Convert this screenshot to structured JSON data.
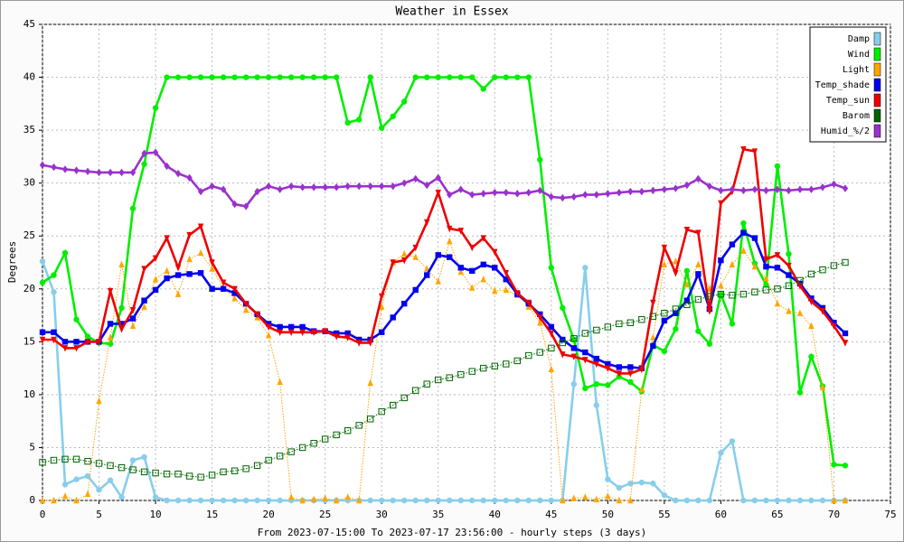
{
  "chart_data": {
    "type": "line",
    "title": "Weather in Essex",
    "y_label": "Degrees",
    "x_label": "From 2023-07-15:00 To 2023-07-17 23:56:00 - hourly steps (3 days)",
    "x": [
      0,
      1,
      2,
      3,
      4,
      5,
      6,
      7,
      8,
      9,
      10,
      11,
      12,
      13,
      14,
      15,
      16,
      17,
      18,
      19,
      20,
      21,
      22,
      23,
      24,
      25,
      26,
      27,
      28,
      29,
      30,
      31,
      32,
      33,
      34,
      35,
      36,
      37,
      38,
      39,
      40,
      41,
      42,
      43,
      44,
      45,
      46,
      47,
      48,
      49,
      50,
      51,
      52,
      53,
      54,
      55,
      56,
      57,
      58,
      59,
      60,
      61,
      62,
      63,
      64,
      65,
      66,
      67,
      68,
      69,
      70,
      71
    ],
    "xlim": [
      0,
      75
    ],
    "ylim": [
      0,
      45
    ],
    "xticks": [
      0,
      5,
      10,
      15,
      20,
      25,
      30,
      35,
      40,
      45,
      50,
      55,
      60,
      65,
      70,
      75
    ],
    "yticks": [
      0,
      5,
      10,
      15,
      20,
      25,
      30,
      35,
      40,
      45
    ],
    "grid": true,
    "legend": "upper right",
    "series": [
      {
        "name": "Damp",
        "color": "#87ceeb",
        "marker": "circle",
        "style": "thick",
        "values": [
          22.6,
          19.7,
          1.5,
          2.0,
          2.3,
          1.0,
          1.9,
          0.3,
          3.8,
          4.1,
          0.3,
          0,
          0,
          0,
          0,
          0,
          0,
          0,
          0,
          0,
          0,
          0,
          0,
          0,
          0,
          0,
          0,
          0,
          0,
          0,
          0,
          0,
          0,
          0,
          0,
          0,
          0,
          0,
          0,
          0,
          0,
          0,
          0,
          0,
          0,
          0,
          0,
          11,
          22,
          9,
          2,
          1.2,
          1.6,
          1.7,
          1.6,
          0.5,
          0,
          0,
          0,
          0,
          4.5,
          5.6,
          0,
          0,
          0,
          0,
          0,
          0,
          0,
          0,
          0,
          0
        ]
      },
      {
        "name": "Wind",
        "color": "#00ee00",
        "marker": "circle",
        "style": "thick",
        "values": [
          20.6,
          21.3,
          23.4,
          17.1,
          15.5,
          14.9,
          14.8,
          18.2,
          27.6,
          31.8,
          37.1,
          40,
          40,
          40,
          40,
          40,
          40,
          40,
          40,
          40,
          40,
          40,
          40,
          40,
          40,
          40,
          40,
          35.7,
          36,
          40,
          35.2,
          36.3,
          37.7,
          40,
          40,
          40,
          40,
          40,
          40,
          38.9,
          40,
          40,
          40,
          40,
          32.2,
          22,
          18.2,
          15.2,
          10.6,
          11,
          10.9,
          11.7,
          11.2,
          10.3,
          14.7,
          14.1,
          16.2,
          21.7,
          16,
          14.8,
          19.5,
          16.7,
          26.2,
          22.4,
          20.4,
          31.6,
          23.3,
          10.2,
          13.6,
          10.8,
          3.4,
          3.3
        ]
      },
      {
        "name": "Light",
        "color": "#ffa500",
        "marker": "triangle",
        "style": "dotted",
        "values": [
          0,
          0,
          0.4,
          0,
          0.6,
          9.4,
          15.4,
          22.3,
          16.5,
          18.3,
          20.9,
          21.7,
          19.5,
          22.8,
          23.4,
          21.9,
          20.1,
          19.1,
          18,
          17.3,
          15.6,
          11.2,
          0.3,
          0,
          0.1,
          0.2,
          0,
          0.3,
          0,
          11.1,
          18.3,
          22.5,
          23.3,
          23,
          21.9,
          20.7,
          24.5,
          21.6,
          20.1,
          20.9,
          19.8,
          19.9,
          19.4,
          18.3,
          16.8,
          12.4,
          0,
          0.2,
          0.3,
          0.1,
          0.4,
          0,
          0,
          10.5,
          15.4,
          22.3,
          22.6,
          20.4,
          22.3,
          20,
          20.3,
          22.3,
          23.6,
          22.1,
          21,
          18.6,
          17.9,
          17.7,
          16.5,
          10.7,
          0,
          0
        ]
      },
      {
        "name": "Temp_shade",
        "color": "#0000ee",
        "marker": "square",
        "style": "thick",
        "values": [
          15.9,
          15.9,
          15.0,
          15.0,
          15.0,
          15.0,
          16.7,
          16.7,
          17.2,
          18.9,
          19.9,
          21.0,
          21.3,
          21.4,
          21.5,
          20.0,
          20.0,
          19.6,
          18.6,
          17.6,
          16.7,
          16.4,
          16.4,
          16.4,
          16.0,
          16.0,
          15.8,
          15.8,
          15.2,
          15.2,
          15.9,
          17.3,
          18.6,
          19.9,
          21.3,
          23.2,
          23.0,
          22.0,
          21.7,
          22.3,
          22.0,
          20.9,
          19.5,
          18.6,
          17.6,
          16.4,
          15.2,
          14.4,
          14.0,
          13.4,
          12.9,
          12.6,
          12.6,
          12.5,
          14.6,
          17.0,
          17.7,
          18.9,
          21.4,
          18.1,
          22.7,
          24.2,
          25.3,
          24.8,
          22.1,
          22.0,
          21.3,
          20.5,
          19.1,
          18.2,
          16.8,
          15.8
        ]
      },
      {
        "name": "Temp_sun",
        "color": "#ee0000",
        "marker": "triangle-down",
        "style": "thick",
        "values": [
          15.2,
          15.2,
          14.4,
          14.4,
          15.0,
          15.0,
          19.8,
          16.2,
          18.0,
          21.9,
          22.9,
          24.8,
          22.0,
          25.1,
          25.9,
          22.5,
          20.6,
          20.0,
          18.6,
          17.6,
          16.4,
          15.9,
          15.9,
          15.9,
          15.9,
          16.0,
          15.5,
          15.4,
          14.9,
          14.9,
          19.3,
          22.5,
          22.7,
          23.9,
          26.3,
          29.1,
          25.7,
          25.5,
          23.9,
          24.8,
          23.5,
          21.5,
          19.6,
          18.7,
          17.3,
          15.8,
          13.8,
          13.6,
          13.3,
          12.9,
          12.5,
          12.0,
          12.0,
          12.4,
          18.7,
          23.9,
          21.5,
          25.6,
          25.3,
          17.9,
          28.1,
          29.2,
          33.2,
          33.0,
          22.8,
          23.2,
          22.2,
          20.3,
          18.8,
          17.9,
          16.5,
          14.9
        ]
      },
      {
        "name": "Barom",
        "color": "#006400",
        "marker": "square-open",
        "style": "dotted",
        "values": [
          3.6,
          3.8,
          3.9,
          3.9,
          3.7,
          3.5,
          3.3,
          3.1,
          2.9,
          2.7,
          2.6,
          2.5,
          2.5,
          2.3,
          2.2,
          2.4,
          2.7,
          2.8,
          3.0,
          3.3,
          3.8,
          4.2,
          4.6,
          5.0,
          5.4,
          5.8,
          6.2,
          6.6,
          7.1,
          7.7,
          8.4,
          9.0,
          9.7,
          10.4,
          11.0,
          11.4,
          11.6,
          11.9,
          12.2,
          12.5,
          12.7,
          12.9,
          13.2,
          13.7,
          14.0,
          14.4,
          14.9,
          15.3,
          15.8,
          16.1,
          16.4,
          16.7,
          16.8,
          17.1,
          17.4,
          17.7,
          18.1,
          18.5,
          19.0,
          19.3,
          19.5,
          19.4,
          19.5,
          19.7,
          19.9,
          20.0,
          20.3,
          20.8,
          21.4,
          21.8,
          22.2,
          22.5
        ]
      },
      {
        "name": "Humid_%/2",
        "color": "#9932cc",
        "marker": "diamond",
        "style": "thick",
        "values": [
          31.7,
          31.5,
          31.3,
          31.2,
          31.1,
          31.0,
          31.0,
          31.0,
          31.0,
          32.8,
          32.9,
          31.6,
          30.9,
          30.5,
          29.2,
          29.7,
          29.4,
          28.0,
          27.8,
          29.2,
          29.7,
          29.4,
          29.7,
          29.6,
          29.6,
          29.6,
          29.6,
          29.7,
          29.7,
          29.7,
          29.7,
          29.7,
          30.0,
          30.4,
          29.8,
          30.5,
          28.9,
          29.4,
          28.9,
          29.0,
          29.1,
          29.1,
          29.0,
          29.1,
          29.3,
          28.7,
          28.6,
          28.7,
          28.9,
          28.9,
          29.0,
          29.1,
          29.2,
          29.2,
          29.3,
          29.4,
          29.5,
          29.8,
          30.4,
          29.7,
          29.3,
          29.4,
          29.3,
          29.4,
          29.3,
          29.4,
          29.3,
          29.4,
          29.4,
          29.6,
          29.9,
          29.5
        ]
      }
    ]
  }
}
